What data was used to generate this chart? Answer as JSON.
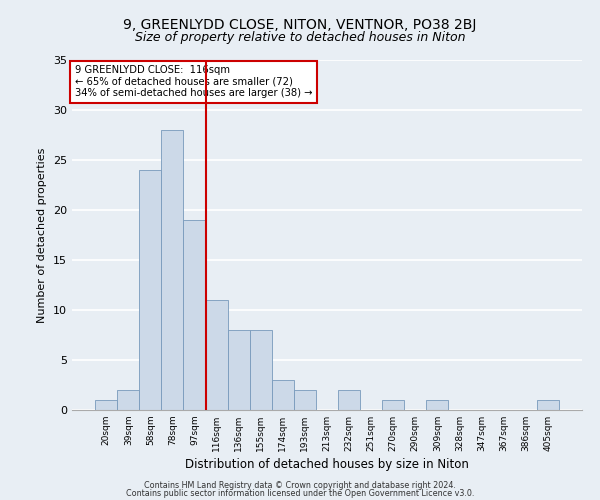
{
  "title": "9, GREENLYDD CLOSE, NITON, VENTNOR, PO38 2BJ",
  "subtitle": "Size of property relative to detached houses in Niton",
  "xlabel": "Distribution of detached houses by size in Niton",
  "ylabel": "Number of detached properties",
  "bar_labels": [
    "20sqm",
    "39sqm",
    "58sqm",
    "78sqm",
    "97sqm",
    "116sqm",
    "136sqm",
    "155sqm",
    "174sqm",
    "193sqm",
    "213sqm",
    "232sqm",
    "251sqm",
    "270sqm",
    "290sqm",
    "309sqm",
    "328sqm",
    "347sqm",
    "367sqm",
    "386sqm",
    "405sqm"
  ],
  "bar_heights": [
    1,
    2,
    24,
    28,
    19,
    11,
    8,
    8,
    3,
    2,
    0,
    2,
    0,
    1,
    0,
    1,
    0,
    0,
    0,
    0,
    1
  ],
  "bar_color": "#ccd9e8",
  "bar_edge_color": "#7799bb",
  "vline_index": 5,
  "vline_color": "#cc0000",
  "annotation_title": "9 GREENLYDD CLOSE:  116sqm",
  "annotation_line1": "← 65% of detached houses are smaller (72)",
  "annotation_line2": "34% of semi-detached houses are larger (38) →",
  "annotation_box_color": "#ffffff",
  "annotation_box_edge": "#cc0000",
  "ylim": [
    0,
    35
  ],
  "yticks": [
    0,
    5,
    10,
    15,
    20,
    25,
    30,
    35
  ],
  "footer1": "Contains HM Land Registry data © Crown copyright and database right 2024.",
  "footer2": "Contains public sector information licensed under the Open Government Licence v3.0.",
  "bg_color": "#e8eef4",
  "plot_bg_color": "#e8eef4",
  "grid_color": "#ffffff",
  "title_fontsize": 10,
  "subtitle_fontsize": 9
}
